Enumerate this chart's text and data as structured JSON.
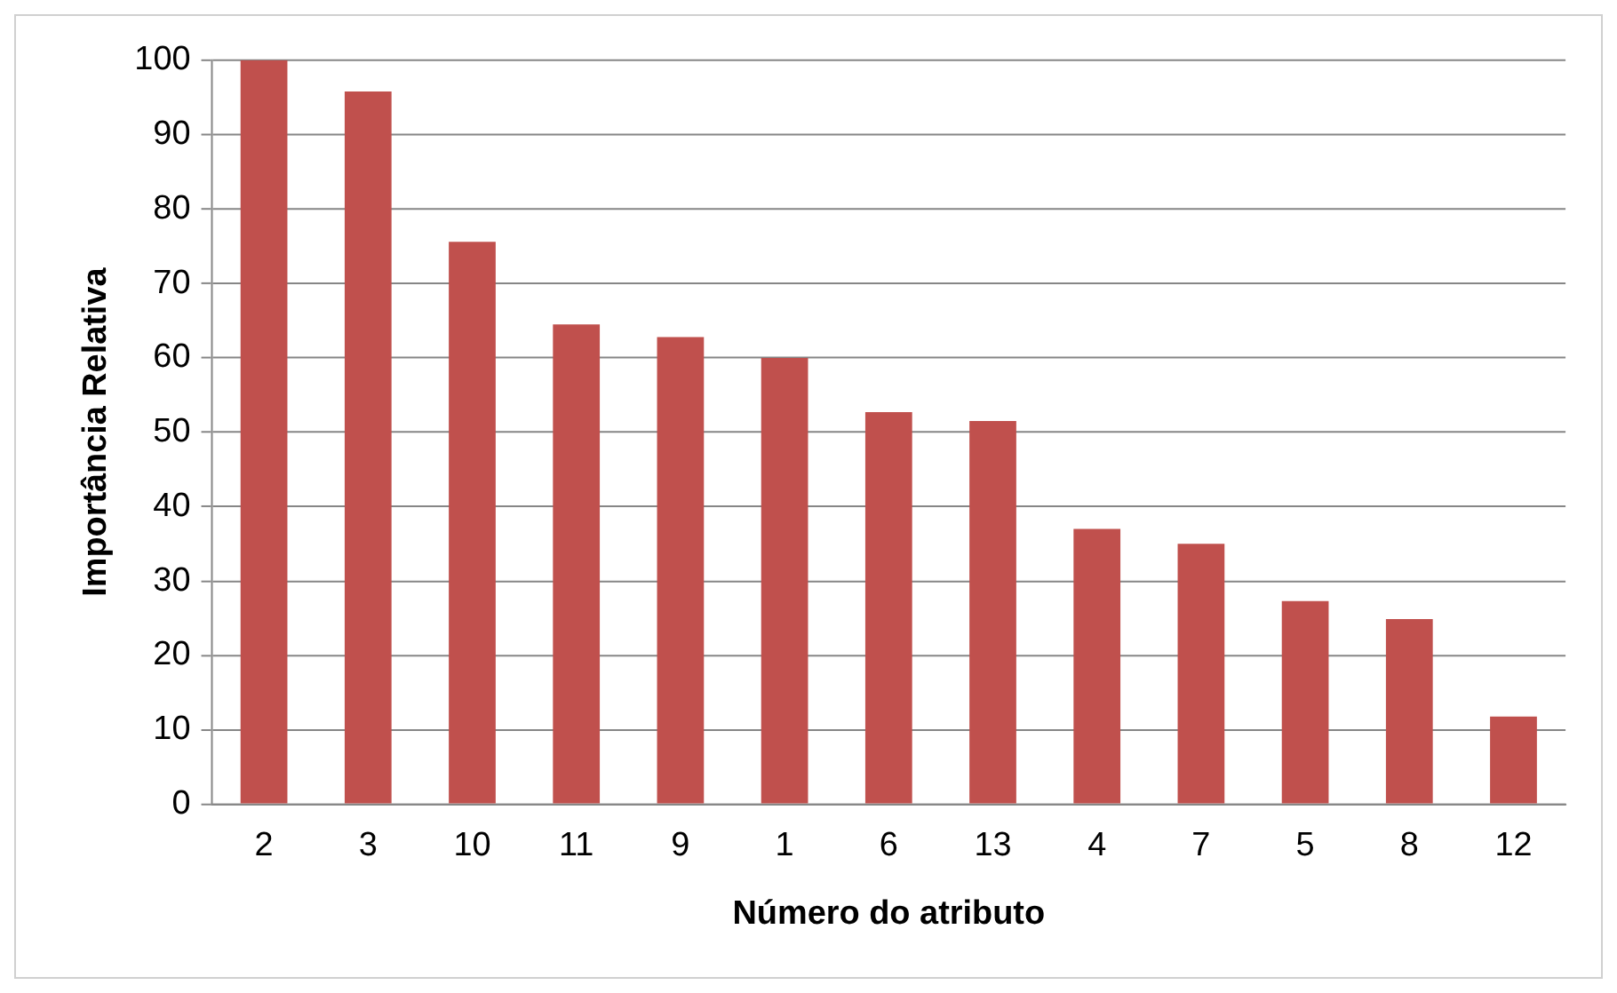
{
  "chart_data": {
    "type": "bar",
    "xlabel": "Número do atributo",
    "ylabel": "Importância Relativa",
    "categories": [
      "2",
      "3",
      "10",
      "11",
      "9",
      "1",
      "6",
      "13",
      "4",
      "7",
      "5",
      "8",
      "12"
    ],
    "values": [
      100,
      95.8,
      75.6,
      64.5,
      62.8,
      60,
      52.7,
      51.5,
      37,
      35,
      27.3,
      24.9,
      11.8
    ],
    "color": "#c0504d",
    "ylim": [
      0,
      100
    ],
    "yticks": [
      0,
      10,
      20,
      30,
      40,
      50,
      60,
      70,
      80,
      90,
      100
    ],
    "grid": "y",
    "legend": false
  }
}
